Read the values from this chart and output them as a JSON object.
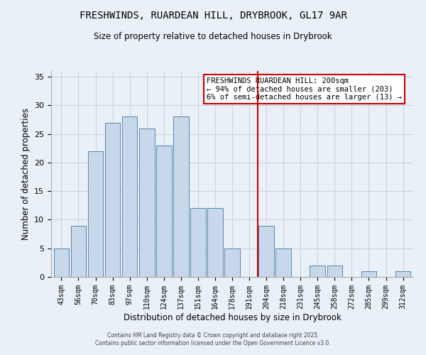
{
  "title": "FRESHWINDS, RUARDEAN HILL, DRYBROOK, GL17 9AR",
  "subtitle": "Size of property relative to detached houses in Drybrook",
  "xlabel": "Distribution of detached houses by size in Drybrook",
  "ylabel": "Number of detached properties",
  "categories": [
    "43sqm",
    "56sqm",
    "70sqm",
    "83sqm",
    "97sqm",
    "110sqm",
    "124sqm",
    "137sqm",
    "151sqm",
    "164sqm",
    "178sqm",
    "191sqm",
    "204sqm",
    "218sqm",
    "231sqm",
    "245sqm",
    "258sqm",
    "272sqm",
    "285sqm",
    "299sqm",
    "312sqm"
  ],
  "values": [
    5,
    9,
    22,
    27,
    28,
    26,
    23,
    28,
    12,
    12,
    5,
    0,
    9,
    5,
    0,
    2,
    2,
    0,
    1,
    0,
    1
  ],
  "bar_color": "#c8d8ea",
  "bar_edge_color": "#5588aa",
  "grid_color": "#c8d4e0",
  "background_color": "#eaf0f8",
  "vline_color": "#cc0000",
  "annotation_text": "FRESHWINDS RUARDEAN HILL: 200sqm\n← 94% of detached houses are smaller (203)\n6% of semi-detached houses are larger (13) →",
  "annotation_box_color": "#ffffff",
  "annotation_box_edge": "#cc0000",
  "ylim": [
    0,
    36
  ],
  "yticks": [
    0,
    5,
    10,
    15,
    20,
    25,
    30,
    35
  ],
  "footer1": "Contains HM Land Registry data © Crown copyright and database right 2025.",
  "footer2": "Contains public sector information licensed under the Open Government Licence v3.0."
}
